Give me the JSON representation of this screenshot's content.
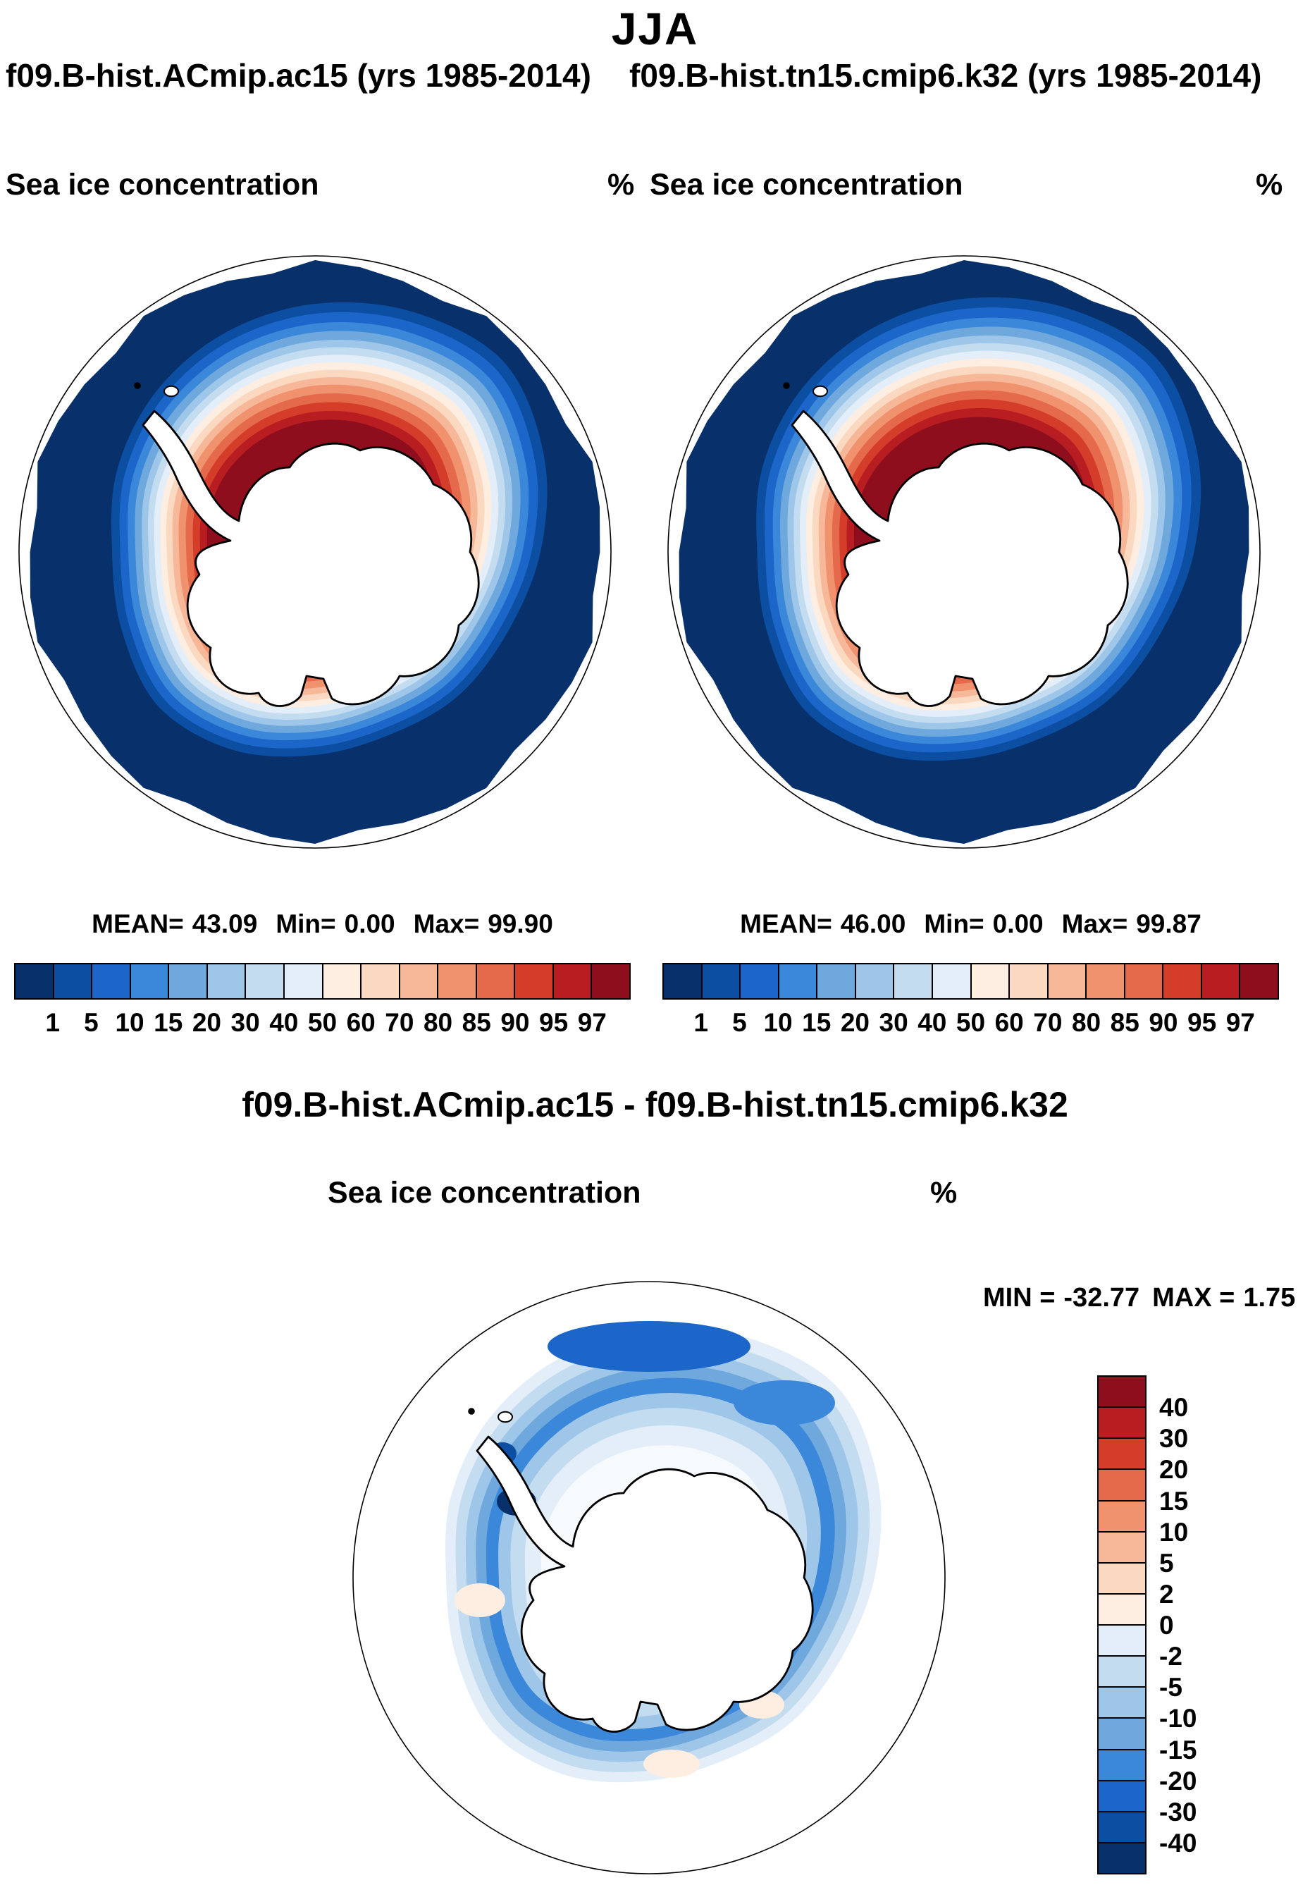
{
  "header": {
    "title": "JJA"
  },
  "panels": [
    {
      "run_label": "f09.B-hist.ACmip.ac15 (yrs 1985-2014)",
      "field_label": "Sea ice concentration",
      "units": "%",
      "stats": {
        "mean_label": "MEAN=",
        "mean_value": "43.09",
        "min_label": "Min=",
        "min_value": "0.00",
        "max_label": "Max=",
        "max_value": "99.90"
      }
    },
    {
      "run_label": "f09.B-hist.tn15.cmip6.k32 (yrs 1985-2014)",
      "field_label": "Sea ice concentration",
      "units": "%",
      "stats": {
        "mean_label": "MEAN=",
        "mean_value": "46.00",
        "min_label": "Min=",
        "min_value": "0.00",
        "max_label": "Max=",
        "max_value": "99.87"
      }
    }
  ],
  "colorbar": {
    "colors": [
      "#08306b",
      "#0b4ea2",
      "#1c66c9",
      "#3b87d9",
      "#6fa8dc",
      "#9dc6e8",
      "#c3dcf0",
      "#e4eef8",
      "#fdeee1",
      "#fbd9c0",
      "#f7b89a",
      "#f0926e",
      "#e56a4b",
      "#d43d2a",
      "#b81d22",
      "#8f0e1d"
    ],
    "tick_labels": [
      "1",
      "5",
      "10",
      "15",
      "20",
      "30",
      "40",
      "50",
      "60",
      "70",
      "80",
      "85",
      "90",
      "95",
      "97"
    ]
  },
  "diff_panel": {
    "title": "f09.B-hist.ACmip.ac15 - f09.B-hist.tn15.cmip6.k32",
    "field_label": "Sea ice concentration",
    "units": "%",
    "min_label": "MIN =",
    "min_value": "-32.77",
    "max_label": "MAX =",
    "max_value": "1.75",
    "colorbar": {
      "colors": [
        "#8f0e1d",
        "#b81d22",
        "#d43d2a",
        "#e56a4b",
        "#f0926e",
        "#f7b89a",
        "#fbd9c0",
        "#fdeee1",
        "#e4eef8",
        "#c3dcf0",
        "#9dc6e8",
        "#6fa8dc",
        "#3b87d9",
        "#1c66c9",
        "#0b4ea2",
        "#08306b"
      ],
      "tick_labels": [
        "40",
        "30",
        "20",
        "15",
        "10",
        "5",
        "2",
        "0",
        "-2",
        "-5",
        "-10",
        "-15",
        "-20",
        "-30",
        "-40"
      ]
    }
  },
  "chart_data": [
    {
      "type": "heatmap",
      "subtype": "south-polar-stereographic-contour-map",
      "season": "JJA",
      "title": "f09.B-hist.ACmip.ac15 (yrs 1985-2014)",
      "variable": "Sea ice concentration",
      "units": "%",
      "region": "Antarctica / Southern Ocean",
      "contour_levels": [
        1,
        5,
        10,
        15,
        20,
        30,
        40,
        50,
        60,
        70,
        80,
        85,
        90,
        95,
        97
      ],
      "palette": "blue-to-red diverging, 16 classes",
      "legend_position": "bottom",
      "stats": {
        "mean": 43.09,
        "min": 0.0,
        "max": 99.9
      }
    },
    {
      "type": "heatmap",
      "subtype": "south-polar-stereographic-contour-map",
      "season": "JJA",
      "title": "f09.B-hist.tn15.cmip6.k32 (yrs 1985-2014)",
      "variable": "Sea ice concentration",
      "units": "%",
      "region": "Antarctica / Southern Ocean",
      "contour_levels": [
        1,
        5,
        10,
        15,
        20,
        30,
        40,
        50,
        60,
        70,
        80,
        85,
        90,
        95,
        97
      ],
      "palette": "blue-to-red diverging, 16 classes",
      "legend_position": "bottom",
      "stats": {
        "mean": 46.0,
        "min": 0.0,
        "max": 99.87
      }
    },
    {
      "type": "heatmap",
      "subtype": "south-polar-stereographic-contour-map",
      "season": "JJA",
      "title": "f09.B-hist.ACmip.ac15 - f09.B-hist.tn15.cmip6.k32",
      "variable": "Sea ice concentration difference",
      "units": "%",
      "region": "Antarctica / Southern Ocean",
      "contour_levels": [
        -40,
        -30,
        -20,
        -15,
        -10,
        -5,
        -2,
        0,
        2,
        5,
        10,
        15,
        20,
        30,
        40
      ],
      "palette": "red-to-blue diverging, 16 classes",
      "legend_position": "right",
      "stats": {
        "min": -32.77,
        "max": 1.75
      }
    }
  ]
}
